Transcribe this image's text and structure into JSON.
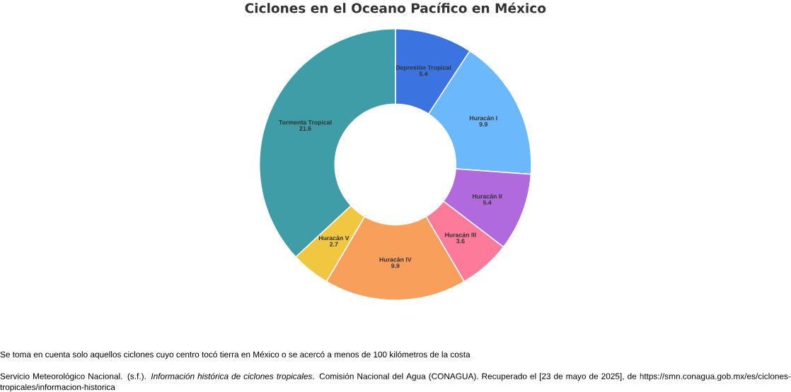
{
  "chart_data": {
    "type": "donut",
    "title": "Ciclones en el Oceano Pacífico en México",
    "categories": [
      "Depresión Tropical",
      "Huracán I",
      "Huracán II",
      "Huracán III",
      "Huracán IV",
      "Huracán V",
      "Tormenta Tropical"
    ],
    "values": [
      5.4,
      9.9,
      5.4,
      3.6,
      9.9,
      2.7,
      21.6
    ],
    "colors": [
      "#3b74e0",
      "#6cb8fd",
      "#b06ade",
      "#fd7a9b",
      "#f89f5b",
      "#f1c640",
      "#3e9da6"
    ],
    "data_labels": true,
    "annotations": [
      "Se toma en cuenta solo aquellos ciclones cuyo centro tocó tierra en México o se acercó a menos de 100 kilómetros de la costa",
      "Servicio Meteorológico Nacional. (s.f.). *Información histórica de ciclones tropicales*. Comisión Nacional del Agua (CONAGUA). Recuperado el [23 de mayo de 2025], de https://smn.conagua.gob.mx/es/ciclones-tropicales/informacion-historica"
    ]
  }
}
